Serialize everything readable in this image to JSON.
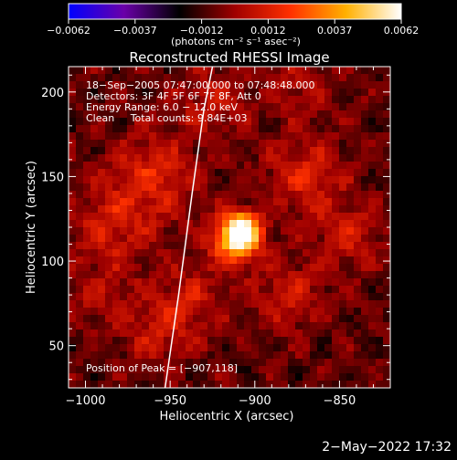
{
  "chart_data": {
    "type": "heatmap",
    "title": "Reconstructed RHESSI Image",
    "xlabel": "Heliocentric X (arcsec)",
    "ylabel": "Heliocentric Y (arcsec)",
    "xlim": [
      -1010,
      -820
    ],
    "ylim": [
      25,
      215
    ],
    "xticks": [
      {
        "value": -1000,
        "label": "−1000"
      },
      {
        "value": -950,
        "label": "−950"
      },
      {
        "value": -900,
        "label": "−900"
      },
      {
        "value": -850,
        "label": "−850"
      }
    ],
    "yticks": [
      {
        "value": 50,
        "label": "50"
      },
      {
        "value": 100,
        "label": "100"
      },
      {
        "value": 150,
        "label": "150"
      },
      {
        "value": 200,
        "label": "200"
      }
    ],
    "colorbar": {
      "range": [
        -0.0062,
        0.0062
      ],
      "ticks": [
        "−0.0062",
        "−0.0037",
        "−0.0012",
        "0.0012",
        "0.0037",
        "0.0062"
      ],
      "unit_label": "(photons cm⁻² s⁻¹ asec⁻²)",
      "colors": [
        "#0000ff",
        "#6a00a8",
        "#000000",
        "#a00000",
        "#ff3000",
        "#ffb000",
        "#ffffff"
      ]
    },
    "annotations": [
      "18−Sep−2005 07:47:00.000 to 07:48:48.000",
      "Detectors: 3F 4F 5F 6F 7F 8F, Att 0",
      "Energy Range: 6.0 − 12.0 keV",
      "Clean     Total counts: 9.84E+03"
    ],
    "peak_label": "Position of Peak = [−907,118]",
    "peak": {
      "x": -907,
      "y": 118,
      "value": 0.0062
    },
    "limb_curve": [
      [
        -953,
        25
      ],
      [
        -945,
        80
      ],
      [
        -937,
        140
      ],
      [
        -930,
        190
      ],
      [
        -925,
        215
      ]
    ],
    "emission_sources": [
      {
        "x": -907,
        "y": 118,
        "value": 0.0062,
        "sigma": 7
      },
      {
        "x": -912,
        "y": 112,
        "value": 0.0045,
        "sigma": 10
      },
      {
        "x": -960,
        "y": 150,
        "value": 0.0022,
        "sigma": 18
      },
      {
        "x": -985,
        "y": 120,
        "value": 0.0018,
        "sigma": 16
      },
      {
        "x": -870,
        "y": 150,
        "value": 0.002,
        "sigma": 16
      },
      {
        "x": -880,
        "y": 80,
        "value": 0.0016,
        "sigma": 15
      },
      {
        "x": -940,
        "y": 75,
        "value": 0.0018,
        "sigma": 15
      },
      {
        "x": -925,
        "y": 195,
        "value": 0.0016,
        "sigma": 14
      },
      {
        "x": -960,
        "y": 55,
        "value": 0.0014,
        "sigma": 12
      },
      {
        "x": -845,
        "y": 115,
        "value": 0.0017,
        "sigma": 14
      },
      {
        "x": -990,
        "y": 80,
        "value": 0.0012,
        "sigma": 14
      },
      {
        "x": -875,
        "y": 205,
        "value": 0.0012,
        "sigma": 14
      }
    ]
  },
  "footer": {
    "timestamp": "2−May−2022 17:32"
  }
}
